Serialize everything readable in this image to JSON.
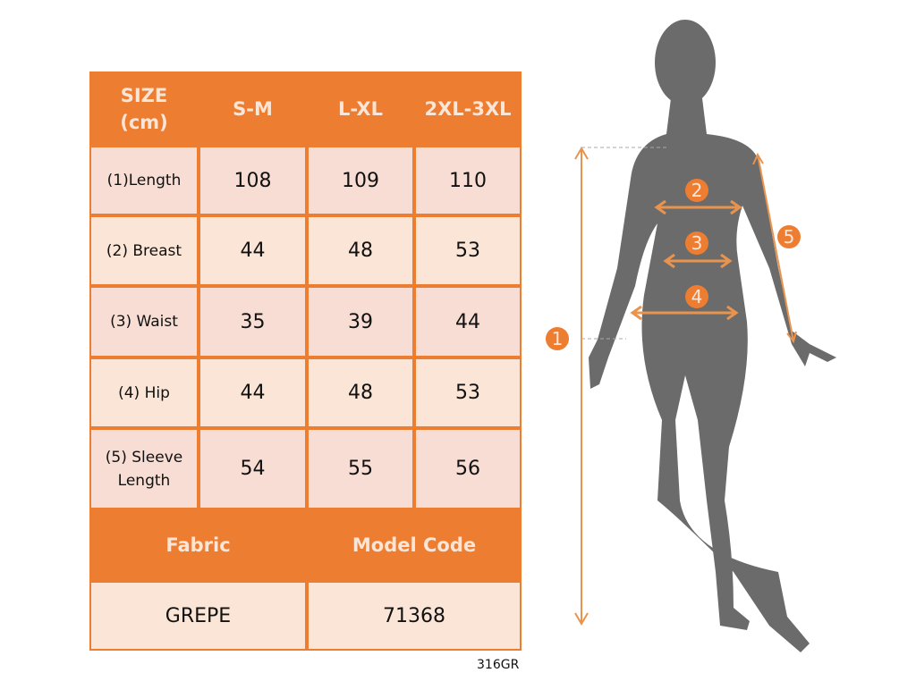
{
  "table": {
    "header": {
      "size_label": "SIZE\n(cm)",
      "sizes": [
        "S-M",
        "L-XL",
        "2XL-3XL"
      ]
    },
    "rows": [
      {
        "label": "(1)Length",
        "values": [
          "108",
          "109",
          "110"
        ]
      },
      {
        "label": "(2) Breast",
        "values": [
          "44",
          "48",
          "53"
        ]
      },
      {
        "label": "(3) Waist",
        "values": [
          "35",
          "39",
          "44"
        ]
      },
      {
        "label": "(4) Hip",
        "values": [
          "44",
          "48",
          "53"
        ]
      },
      {
        "label": "(5) Sleeve\nLength",
        "values": [
          "54",
          "55",
          "56"
        ]
      }
    ],
    "footer": {
      "fabric_label": "Fabric",
      "model_code_label": "Model Code",
      "fabric": "GREPE",
      "model_code": "71368"
    }
  },
  "product_code": "316GR",
  "figure": {
    "markers": [
      "1",
      "2",
      "3",
      "4",
      "5"
    ]
  },
  "colors": {
    "accent": "#ED7D31",
    "cell": "#FBE5D6",
    "silhouette": "#6B6B6B"
  }
}
